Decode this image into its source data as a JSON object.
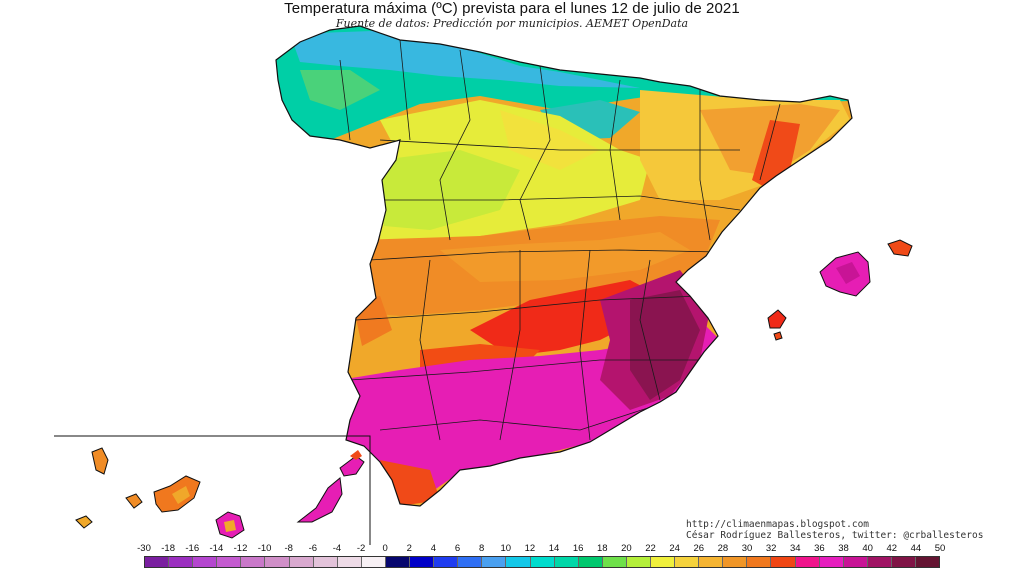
{
  "header": {
    "title": "Temperatura máxima (ºC) prevista para el lunes 12 de julio de 2021",
    "subtitle": "Fuente de datos: Predicción por municipios. AEMET OpenData"
  },
  "credits": {
    "url": "http://climaenmapas.blogspot.com",
    "author": "César Rodríguez Ballesteros, twitter: @crballesteros"
  },
  "legend": {
    "ticks": [
      "-30",
      "-18",
      "-16",
      "-14",
      "-12",
      "-10",
      "-8",
      "-6",
      "-4",
      "-2",
      "0",
      "2",
      "4",
      "6",
      "8",
      "10",
      "12",
      "14",
      "16",
      "18",
      "20",
      "22",
      "24",
      "26",
      "28",
      "30",
      "32",
      "34",
      "36",
      "38",
      "40",
      "42",
      "44",
      "50"
    ],
    "colors": [
      "#7a1fa0",
      "#9b2fc0",
      "#b446cf",
      "#c45bd0",
      "#c978c9",
      "#d08fc8",
      "#d9a9cf",
      "#e3c3da",
      "#eedbe7",
      "#f7f0f4",
      "#06066e",
      "#0000c8",
      "#1f3cf0",
      "#2f6ff4",
      "#4aa0f0",
      "#14c8e8",
      "#00dccd",
      "#00d7a8",
      "#00c86e",
      "#6ee04a",
      "#b4ef3a",
      "#f0f03c",
      "#f5d23c",
      "#f5b432",
      "#f09628",
      "#f0781e",
      "#f04614",
      "#f0148c",
      "#e61ebe",
      "#c81496",
      "#a01464",
      "#801446",
      "#641432"
    ]
  }
}
